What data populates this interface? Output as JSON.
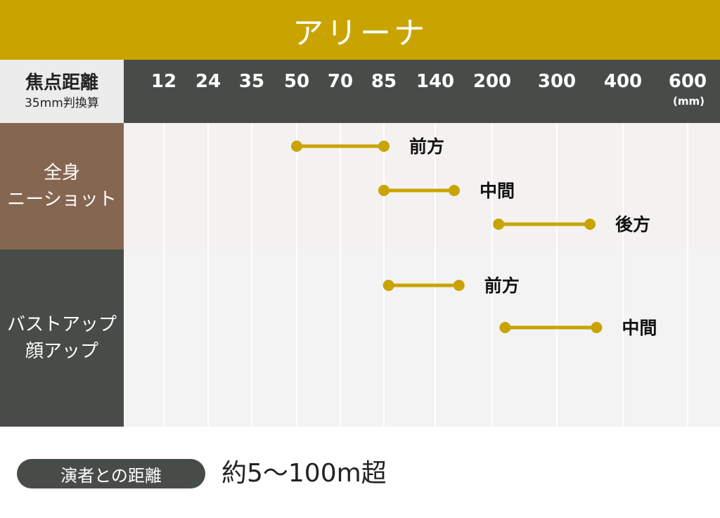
{
  "title": "アリーナ",
  "axis": {
    "label_main": "焦点距離",
    "label_sub": "35mm判換算",
    "unit": "(mm)"
  },
  "categories": {
    "full_body": [
      "全身",
      "ニーショット"
    ],
    "bust_up": [
      "バストアップ",
      "顔アップ"
    ]
  },
  "footer": {
    "label": "演者との距離",
    "value": "約5〜100m超"
  },
  "colors": {
    "accent": "#c9a400",
    "dark": "#484c48",
    "brown": "#856650"
  },
  "chart_data": {
    "type": "range",
    "title": "アリーナ",
    "xlabel": "焦点距離 35mm判換算 (mm)",
    "x_ticks": [
      12,
      24,
      35,
      50,
      70,
      85,
      140,
      200,
      300,
      400,
      600
    ],
    "x_scale": "categorical-ticks",
    "series": [
      {
        "group": "full_body",
        "label": "前方",
        "start": 50,
        "end": 85
      },
      {
        "group": "full_body",
        "label": "中間",
        "start": 85,
        "end": 160
      },
      {
        "group": "full_body",
        "label": "後方",
        "start": 210,
        "end": 350
      },
      {
        "group": "bust_up",
        "label": "前方",
        "start": 90,
        "end": 165
      },
      {
        "group": "bust_up",
        "label": "中間",
        "start": 220,
        "end": 360
      }
    ]
  }
}
